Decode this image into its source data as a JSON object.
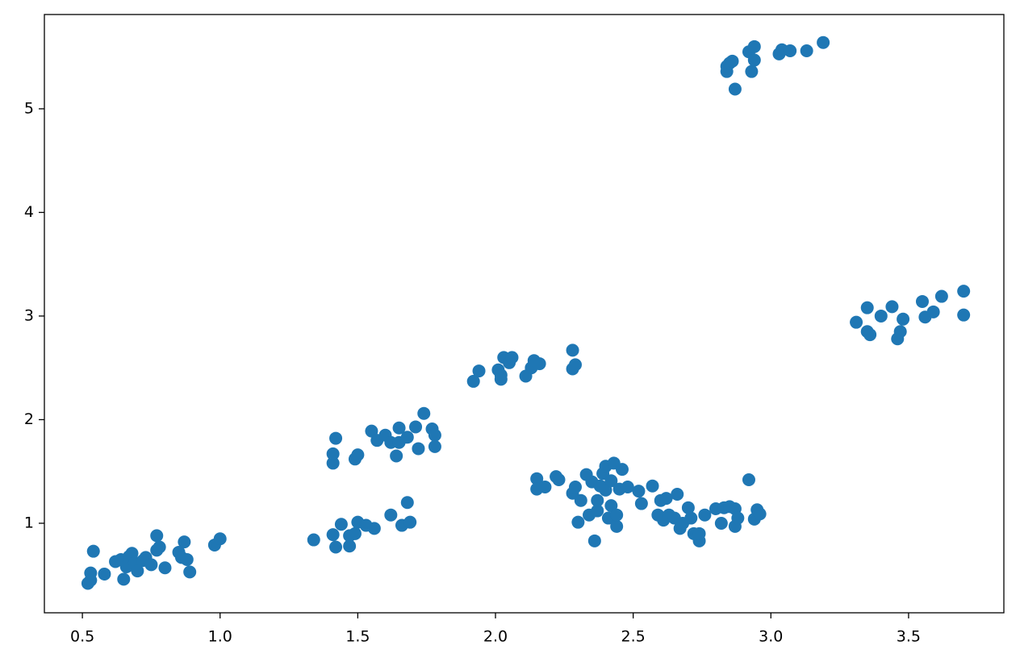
{
  "chart_data": {
    "type": "scatter",
    "x": [
      0.52,
      0.53,
      0.53,
      0.54,
      0.58,
      0.62,
      0.64,
      0.65,
      0.66,
      0.67,
      0.68,
      0.69,
      0.7,
      0.72,
      0.73,
      0.75,
      0.77,
      0.77,
      0.78,
      0.8,
      0.85,
      0.86,
      0.87,
      0.88,
      0.89,
      0.98,
      1.0,
      1.34,
      1.41,
      1.42,
      1.44,
      1.47,
      1.47,
      1.49,
      1.5,
      1.53,
      1.56,
      1.62,
      1.66,
      1.68,
      1.69,
      1.41,
      1.41,
      1.42,
      1.49,
      1.5,
      1.55,
      1.57,
      1.6,
      1.62,
      1.64,
      1.65,
      1.65,
      1.68,
      1.71,
      1.72,
      1.74,
      1.77,
      1.78,
      1.78,
      1.92,
      1.94,
      2.01,
      2.02,
      2.02,
      2.03,
      2.05,
      2.06,
      2.11,
      2.13,
      2.14,
      2.16,
      2.28,
      2.28,
      2.29,
      2.15,
      2.15,
      2.18,
      2.22,
      2.23,
      2.28,
      2.29,
      2.3,
      2.31,
      2.33,
      2.34,
      2.35,
      2.36,
      2.37,
      2.37,
      2.38,
      2.39,
      2.4,
      2.4,
      2.41,
      2.42,
      2.42,
      2.43,
      2.44,
      2.44,
      2.45,
      2.46,
      2.48,
      2.52,
      2.53,
      2.57,
      2.59,
      2.6,
      2.61,
      2.62,
      2.63,
      2.65,
      2.66,
      2.67,
      2.68,
      2.7,
      2.71,
      2.72,
      2.74,
      2.74,
      2.76,
      2.8,
      2.82,
      2.83,
      2.85,
      2.87,
      2.87,
      2.88,
      2.92,
      2.94,
      2.95,
      2.96,
      2.84,
      2.84,
      2.85,
      2.86,
      2.87,
      2.92,
      2.93,
      2.94,
      2.94,
      3.03,
      3.04,
      3.07,
      3.13,
      3.19,
      3.31,
      3.35,
      3.35,
      3.36,
      3.4,
      3.44,
      3.46,
      3.47,
      3.48,
      3.55,
      3.56,
      3.59,
      3.62,
      3.7,
      3.7
    ],
    "series": [
      {
        "color": "#1f77b4",
        "values": [
          0.42,
          0.45,
          0.52,
          0.73,
          0.51,
          0.63,
          0.65,
          0.46,
          0.58,
          0.68,
          0.71,
          0.62,
          0.54,
          0.64,
          0.67,
          0.6,
          0.88,
          0.74,
          0.77,
          0.57,
          0.72,
          0.67,
          0.82,
          0.65,
          0.53,
          0.79,
          0.85,
          0.84,
          0.89,
          0.77,
          0.99,
          0.78,
          0.88,
          0.9,
          1.01,
          0.98,
          0.95,
          1.08,
          0.98,
          1.2,
          1.01,
          1.58,
          1.67,
          1.82,
          1.62,
          1.66,
          1.89,
          1.8,
          1.85,
          1.78,
          1.65,
          1.78,
          1.92,
          1.83,
          1.93,
          1.72,
          2.06,
          1.91,
          1.85,
          1.74,
          2.37,
          2.47,
          2.48,
          2.43,
          2.39,
          2.6,
          2.55,
          2.6,
          2.42,
          2.5,
          2.57,
          2.54,
          2.67,
          2.49,
          2.53,
          1.43,
          1.33,
          1.35,
          1.45,
          1.42,
          1.29,
          1.35,
          1.01,
          1.22,
          1.47,
          1.08,
          1.4,
          0.83,
          1.12,
          1.22,
          1.36,
          1.48,
          1.55,
          1.32,
          1.05,
          1.17,
          1.41,
          1.58,
          0.97,
          1.08,
          1.33,
          1.52,
          1.35,
          1.31,
          1.19,
          1.36,
          1.08,
          1.22,
          1.03,
          1.24,
          1.08,
          1.05,
          1.28,
          0.95,
          1.0,
          1.15,
          1.05,
          0.9,
          0.83,
          0.9,
          1.08,
          1.14,
          1.0,
          1.15,
          1.16,
          0.97,
          1.14,
          1.05,
          1.42,
          1.04,
          1.13,
          1.09,
          5.36,
          5.41,
          5.44,
          5.46,
          5.19,
          5.55,
          5.36,
          5.47,
          5.6,
          5.53,
          5.57,
          5.56,
          5.56,
          5.64,
          2.94,
          2.85,
          3.08,
          2.82,
          3.0,
          3.09,
          2.78,
          2.85,
          2.97,
          3.14,
          2.99,
          3.04,
          3.19,
          3.24,
          3.01
        ]
      }
    ],
    "xlim": [
      0.362,
      3.846
    ],
    "ylim": [
      0.136,
      5.91
    ],
    "xticks": [
      0.5,
      {
        "value": 1,
        "label": "1.0"
      },
      1.5,
      {
        "value": 2,
        "label": "2.0"
      },
      2.5,
      {
        "value": 3,
        "label": "3.0"
      },
      3.5
    ],
    "yticks": [
      1,
      2,
      3,
      4,
      5
    ],
    "grid": false
  }
}
